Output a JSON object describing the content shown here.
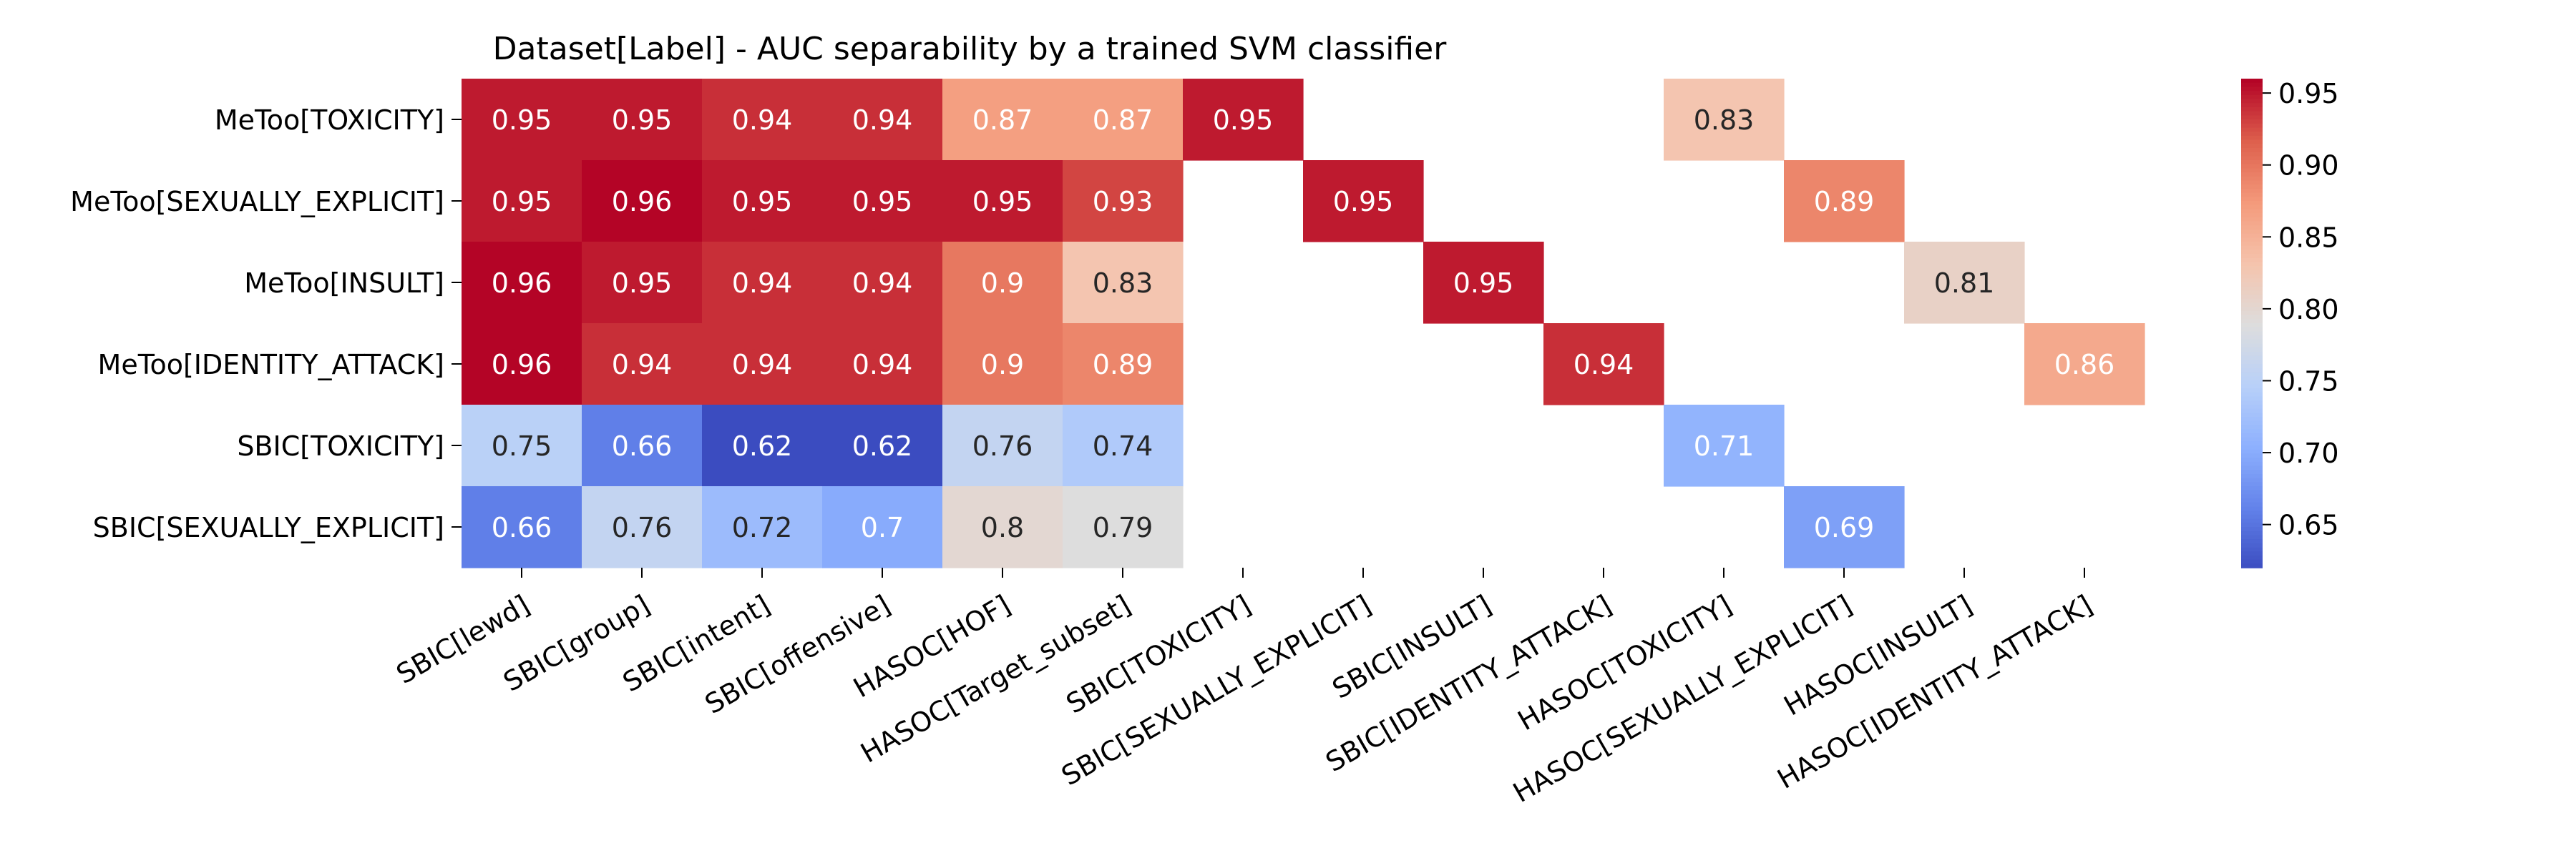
{
  "chart_data": {
    "type": "heatmap",
    "title": "Dataset[Label] - AUC separability by a trained SVM classifier",
    "xlabel": "",
    "ylabel": "",
    "x_categories": [
      "SBIC[lewd]",
      "SBIC[group]",
      "SBIC[intent]",
      "SBIC[offensive]",
      "HASOC[HOF]",
      "HASOC[Target_subset]",
      "SBIC[TOXICITY]",
      "SBIC[SEXUALLY_EXPLICIT]",
      "SBIC[INSULT]",
      "SBIC[IDENTITY_ATTACK]",
      "HASOC[TOXICITY]",
      "HASOC[SEXUALLY_EXPLICIT]",
      "HASOC[INSULT]",
      "HASOC[IDENTITY_ATTACK]"
    ],
    "y_categories": [
      "MeToo[TOXICITY]",
      "MeToo[SEXUALLY_EXPLICIT]",
      "MeToo[INSULT]",
      "MeToo[IDENTITY_ATTACK]",
      "SBIC[TOXICITY]",
      "SBIC[SEXUALLY_EXPLICIT]"
    ],
    "values": [
      [
        0.95,
        0.95,
        0.94,
        0.94,
        0.87,
        0.87,
        0.95,
        null,
        null,
        null,
        0.83,
        null,
        null,
        null
      ],
      [
        0.95,
        0.96,
        0.95,
        0.95,
        0.95,
        0.93,
        null,
        0.95,
        null,
        null,
        null,
        0.89,
        null,
        null
      ],
      [
        0.96,
        0.95,
        0.94,
        0.94,
        0.9,
        0.83,
        null,
        null,
        0.95,
        null,
        null,
        null,
        0.81,
        null
      ],
      [
        0.96,
        0.94,
        0.94,
        0.94,
        0.9,
        0.89,
        null,
        null,
        null,
        0.94,
        null,
        null,
        null,
        0.86
      ],
      [
        0.75,
        0.66,
        0.62,
        0.62,
        0.76,
        0.74,
        null,
        null,
        null,
        null,
        0.71,
        null,
        null,
        null
      ],
      [
        0.66,
        0.76,
        0.72,
        0.7,
        0.8,
        0.79,
        null,
        null,
        null,
        null,
        null,
        0.69,
        null,
        null
      ]
    ],
    "colormap": "coolwarm",
    "color_range": [
      0.62,
      0.96
    ],
    "colorbar_ticks": [
      0.65,
      0.7,
      0.75,
      0.8,
      0.85,
      0.9,
      0.95
    ],
    "colorbar_tick_labels": [
      "0.65",
      "0.70",
      "0.75",
      "0.80",
      "0.85",
      "0.90",
      "0.95"
    ],
    "colorbar_placement": "right",
    "grid": false,
    "annotated": true
  }
}
